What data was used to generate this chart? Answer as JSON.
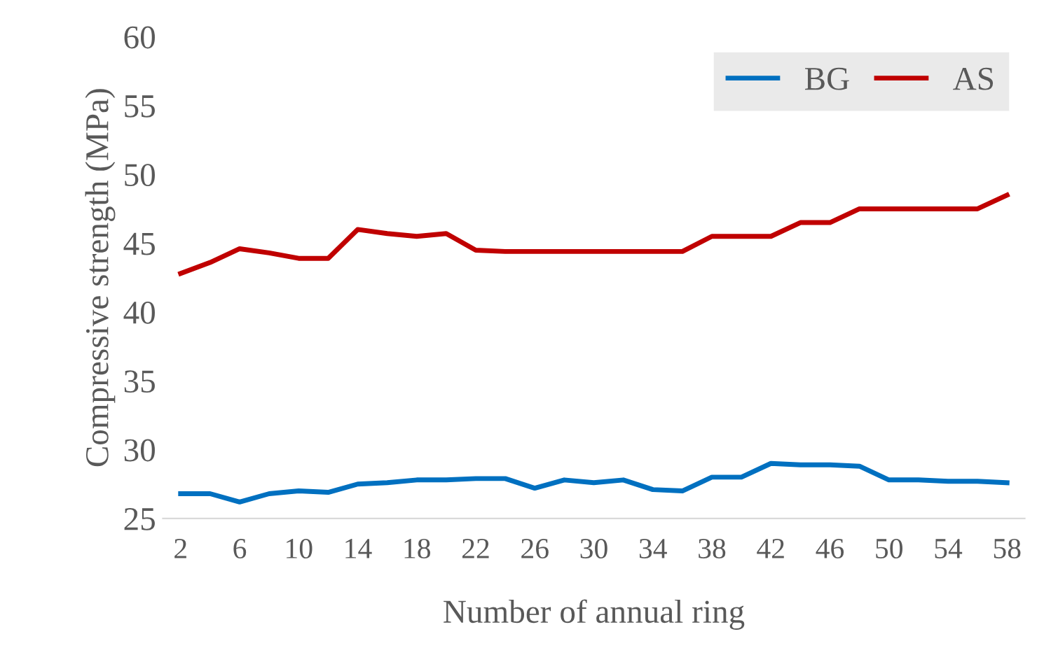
{
  "chart_data": {
    "type": "line",
    "xlabel": "Number of annual ring",
    "ylabel": "Compressive strength (MPa)",
    "categories": [
      "2",
      null,
      "6",
      null,
      "10",
      null,
      "14",
      null,
      "18",
      null,
      "22",
      null,
      "26",
      null,
      "30",
      null,
      "34",
      null,
      "38",
      null,
      "42",
      null,
      "46",
      null,
      "50",
      null,
      "54",
      null,
      "58"
    ],
    "series": [
      {
        "name": "BG",
        "color": "#0070c0",
        "values": [
          26.8,
          26.8,
          26.2,
          26.8,
          27.0,
          26.9,
          27.5,
          27.6,
          27.8,
          27.8,
          27.9,
          27.9,
          27.2,
          27.8,
          27.6,
          27.8,
          27.1,
          27.0,
          28.0,
          28.0,
          29.0,
          28.9,
          28.9,
          28.8,
          27.8,
          27.8,
          27.7,
          27.7,
          27.6
        ]
      },
      {
        "name": "AS",
        "color": "#c00000",
        "values": [
          42.8,
          43.6,
          44.6,
          44.3,
          43.9,
          43.9,
          46.0,
          45.7,
          45.5,
          45.7,
          44.5,
          44.4,
          44.4,
          44.4,
          44.4,
          44.4,
          44.4,
          44.4,
          45.5,
          45.5,
          45.5,
          46.5,
          46.5,
          47.5,
          47.5,
          47.5,
          47.5,
          47.5,
          48.5
        ]
      }
    ],
    "ylim": [
      25,
      60
    ],
    "yticks": [
      25,
      30,
      35,
      40,
      45,
      50,
      55,
      60
    ],
    "grid": false,
    "legend": "top right",
    "marker": "none",
    "line_style": "solid"
  }
}
